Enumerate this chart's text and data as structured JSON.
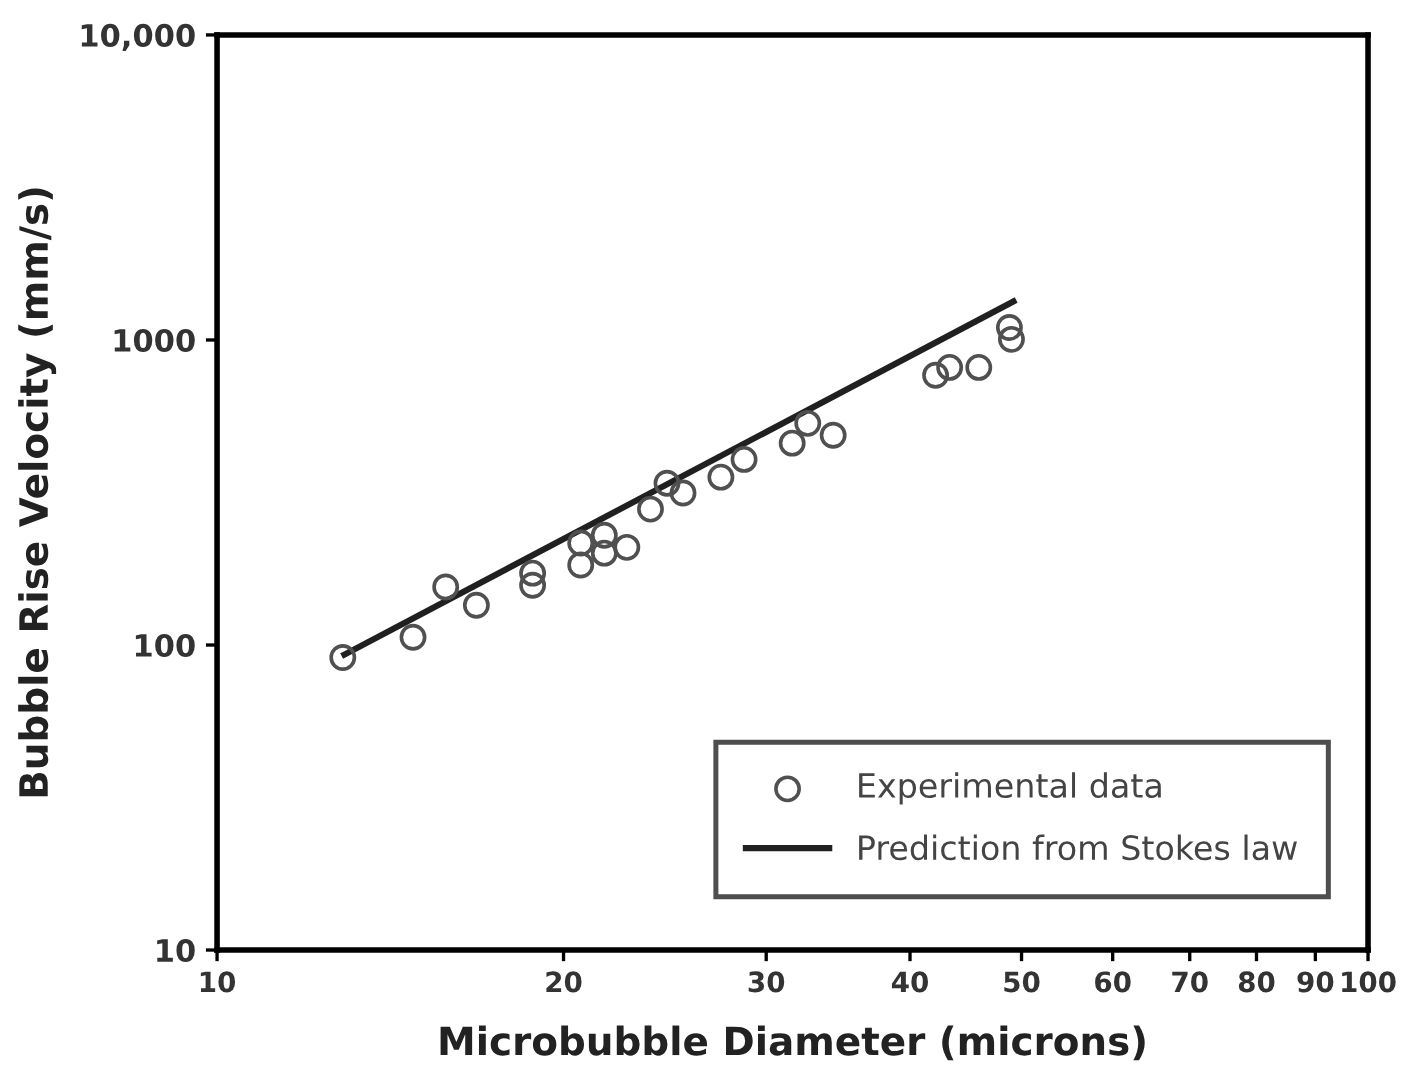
{
  "chart_data": {
    "type": "scatter",
    "xlabel": "Microbubble Diameter (microns)",
    "ylabel": "Bubble Rise Velocity (mm/s)",
    "log": "xy",
    "xlim": [
      10,
      100
    ],
    "ylim": [
      10,
      10000
    ],
    "xticks": [
      10,
      20,
      30,
      40,
      50,
      60,
      70,
      80,
      90,
      100
    ],
    "yticks": [
      10,
      100,
      1000,
      {
        "value": 10000,
        "label": "10,000"
      }
    ],
    "grid": false,
    "legend": "bottom right",
    "series": [
      {
        "name": "Experimental data",
        "marker": "circle",
        "color": "#505050",
        "x": [
          12.86,
          14.8,
          15.8,
          16.8,
          18.8,
          18.8,
          20.7,
          20.7,
          21.7,
          21.7,
          22.7,
          23.8,
          24.6,
          25.4,
          27.4,
          28.7,
          31.6,
          32.6,
          34.3,
          42.1,
          43.3,
          45.9,
          48.8,
          49.0
        ],
        "values": [
          91,
          106,
          155,
          135,
          172,
          157,
          216,
          183,
          229,
          200,
          209,
          279,
          339,
          315,
          355,
          406,
          459,
          533,
          487,
          766,
          813,
          813,
          1099,
          1005
        ]
      },
      {
        "name": "Prediction from Stokes law",
        "type": "line",
        "marker": "none",
        "line_style": "solid",
        "color": "#202020",
        "x": [
          12.9,
          49.2
        ],
        "values": [
          93,
          1337
        ]
      }
    ]
  }
}
